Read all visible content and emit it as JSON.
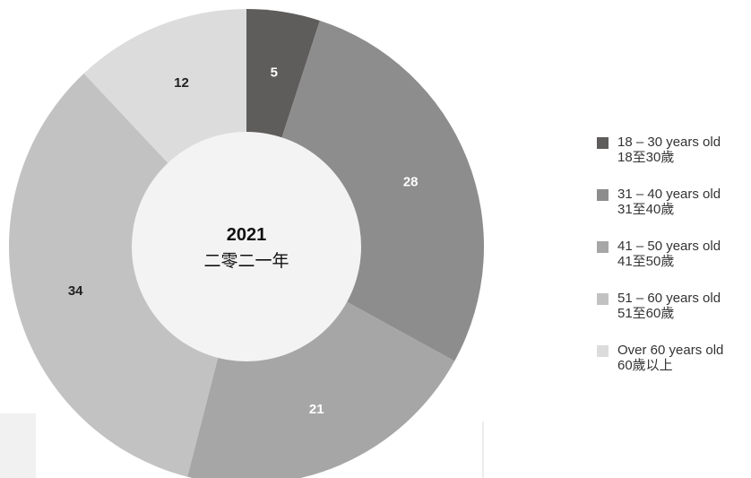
{
  "chart_data": {
    "type": "pie",
    "center_label": {
      "year": "2021",
      "year_zh": "二零二一年"
    },
    "slices": [
      {
        "label": "18 – 30 years old",
        "label_zh": "18至30歲",
        "value": 5,
        "color": "#5f5c5c",
        "label_color": "#ffffff"
      },
      {
        "label": "31 – 40 years old",
        "label_zh": "31至40歲",
        "value": 28,
        "color": "#8d8d8d",
        "label_color": "#ffffff"
      },
      {
        "label": "41 – 50 years old",
        "label_zh": "41至50歲",
        "value": 21,
        "color": "#a6a6a6",
        "label_color": "#ffffff"
      },
      {
        "label": "51 – 60 years old",
        "label_zh": "51至60歲",
        "value": 34,
        "color": "#c2c2c2",
        "label_color": "#222222"
      },
      {
        "label": "Over 60 years old",
        "label_zh": "60歲以上",
        "value": 12,
        "color": "#dcdcdc",
        "label_color": "#222222"
      }
    ],
    "legend_position": "right"
  }
}
